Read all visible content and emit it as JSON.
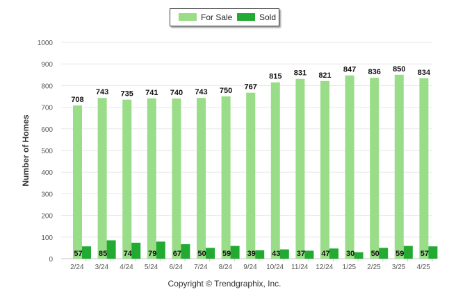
{
  "chart_data": {
    "type": "bar",
    "title": "",
    "xlabel": "",
    "ylabel": "Number of Homes",
    "ylim": [
      0,
      1000
    ],
    "yticks": [
      0,
      100,
      200,
      300,
      400,
      500,
      600,
      700,
      800,
      900,
      1000
    ],
    "grid": true,
    "legend_position": "top-center",
    "categories": [
      "2/24",
      "3/24",
      "4/24",
      "5/24",
      "6/24",
      "7/24",
      "8/24",
      "9/24",
      "10/24",
      "11/24",
      "12/24",
      "1/25",
      "2/25",
      "3/25",
      "4/25"
    ],
    "series": [
      {
        "name": "For Sale",
        "color": "#99dd88",
        "values": [
          708,
          743,
          735,
          741,
          740,
          743,
          750,
          767,
          815,
          831,
          821,
          847,
          836,
          850,
          834
        ]
      },
      {
        "name": "Sold",
        "color": "#22aa33",
        "values": [
          57,
          85,
          74,
          79,
          67,
          50,
          59,
          39,
          43,
          37,
          47,
          30,
          50,
          59,
          57
        ]
      }
    ]
  },
  "footer": {
    "copyright": "Copyright © Trendgraphix, Inc."
  }
}
